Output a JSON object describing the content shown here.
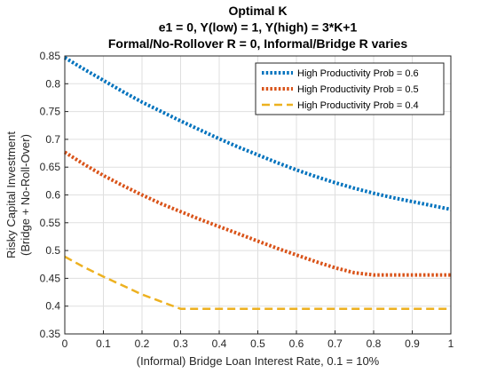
{
  "chart_data": {
    "type": "line",
    "title": [
      "Optimal K",
      "e1 = 0, Y(low) = 1, Y(high) = 3*K+1",
      "Formal/No-Rollover R = 0, Informal/Bridge R varies"
    ],
    "xlabel": "(Informal) Bridge Loan Interest Rate, 0.1 = 10%",
    "ylabel": [
      "Risky Capital Investment",
      "(Bridge + No-Roll-Over)"
    ],
    "xlim": [
      0,
      1
    ],
    "ylim": [
      0.35,
      0.85
    ],
    "xticks": [
      0,
      0.1,
      0.2,
      0.3,
      0.4,
      0.5,
      0.6,
      0.7,
      0.8,
      0.9,
      1
    ],
    "xtick_labels": [
      "0",
      "0.1",
      "0.2",
      "0.3",
      "0.4",
      "0.5",
      "0.6",
      "0.7",
      "0.8",
      "0.9",
      "1"
    ],
    "yticks": [
      0.35,
      0.4,
      0.45,
      0.5,
      0.55,
      0.6,
      0.65,
      0.7,
      0.75,
      0.8,
      0.85
    ],
    "ytick_labels": [
      "0.35",
      "0.4",
      "0.45",
      "0.5",
      "0.55",
      "0.6",
      "0.65",
      "0.7",
      "0.75",
      "0.8",
      "0.85"
    ],
    "grid": true,
    "legend_position": "top-right",
    "x": [
      0,
      0.05,
      0.1,
      0.15,
      0.2,
      0.25,
      0.3,
      0.35,
      0.4,
      0.45,
      0.5,
      0.55,
      0.6,
      0.65,
      0.7,
      0.75,
      0.8,
      0.85,
      0.9,
      0.95,
      1
    ],
    "series": [
      {
        "name": "High Productivity Prob = 0.6",
        "color": "#0072BD",
        "style": "dotted",
        "values": [
          0.847,
          0.826,
          0.806,
          0.786,
          0.767,
          0.75,
          0.733,
          0.717,
          0.701,
          0.686,
          0.672,
          0.658,
          0.645,
          0.633,
          0.622,
          0.612,
          0.603,
          0.595,
          0.588,
          0.581,
          0.574
        ]
      },
      {
        "name": "High Productivity Prob = 0.5",
        "color": "#D95319",
        "style": "dotted",
        "values": [
          0.677,
          0.655,
          0.635,
          0.617,
          0.6,
          0.584,
          0.57,
          0.556,
          0.543,
          0.53,
          0.517,
          0.504,
          0.492,
          0.48,
          0.469,
          0.46,
          0.456,
          0.456,
          0.456,
          0.456,
          0.456
        ]
      },
      {
        "name": "High Productivity Prob = 0.4",
        "color": "#EDB120",
        "style": "dashed",
        "values": [
          0.489,
          0.47,
          0.453,
          0.437,
          0.421,
          0.408,
          0.395,
          0.395,
          0.395,
          0.395,
          0.395,
          0.395,
          0.395,
          0.395,
          0.395,
          0.395,
          0.395,
          0.395,
          0.395,
          0.395,
          0.395
        ]
      }
    ]
  }
}
